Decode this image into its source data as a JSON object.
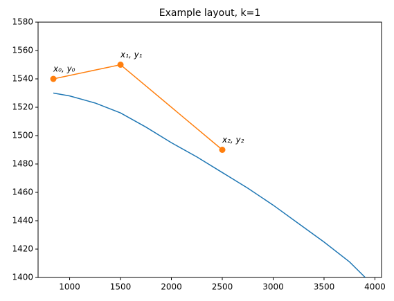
{
  "chart_data": {
    "type": "line",
    "title": "Example layout, k=1",
    "xlim": [
      690,
      4065
    ],
    "ylim": [
      1400,
      1580
    ],
    "xticks": [
      1000,
      1500,
      2000,
      2500,
      3000,
      3500,
      4000
    ],
    "yticks": [
      1400,
      1420,
      1440,
      1460,
      1480,
      1500,
      1520,
      1540,
      1560,
      1580
    ],
    "series": [
      {
        "color": "#1f77b4",
        "markers": false,
        "x": [
          840,
          1000,
          1250,
          1500,
          1750,
          2000,
          2250,
          2500,
          2750,
          3000,
          3250,
          3500,
          3750,
          3905
        ],
        "values": [
          1530,
          1528,
          1523,
          1516,
          1506,
          1495,
          1485,
          1474,
          1463,
          1451,
          1438,
          1425,
          1411,
          1400
        ]
      },
      {
        "color": "#ff7f0e",
        "markers": true,
        "x": [
          840,
          1500,
          2500
        ],
        "values": [
          1540,
          1550,
          1490
        ],
        "point_labels": [
          "x₀, y₀",
          "x₁, y₁",
          "x₂, y₂"
        ]
      }
    ]
  }
}
